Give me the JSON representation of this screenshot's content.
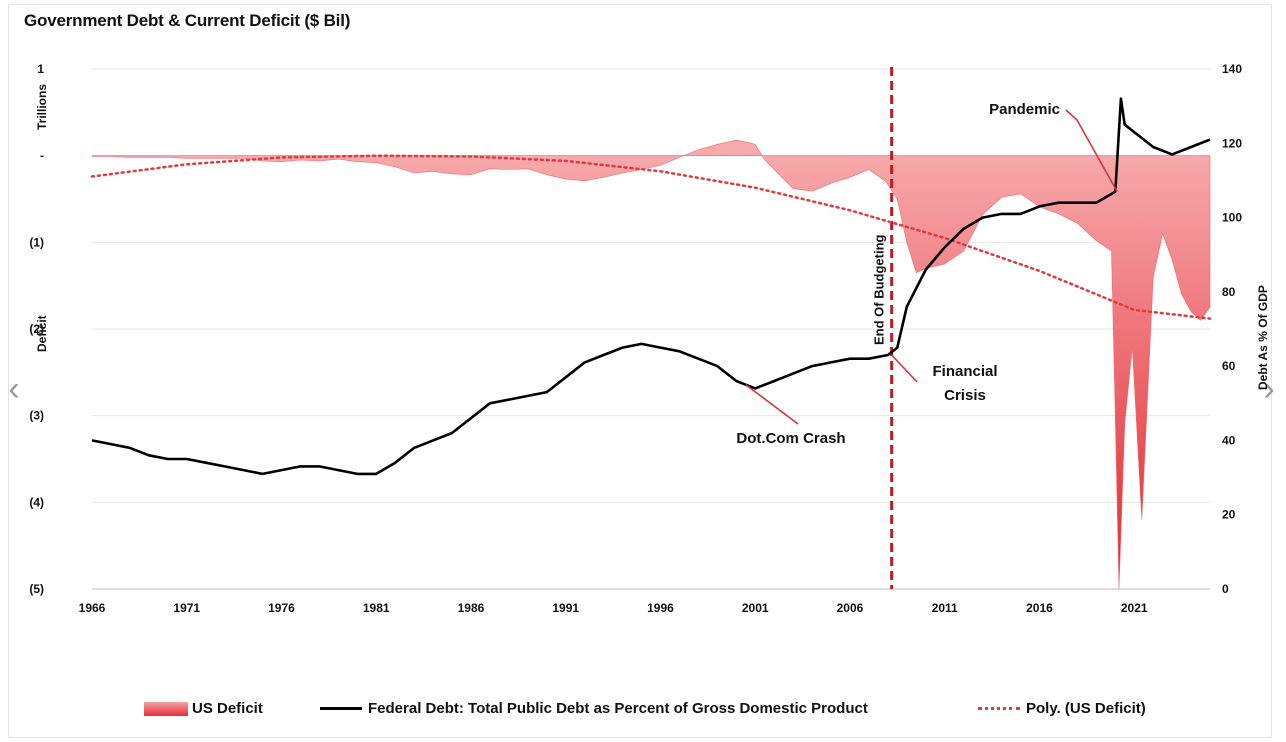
{
  "chart_data": {
    "type": "area",
    "title": "Government Debt & Current Deficit ($ Bil)",
    "left_axis": {
      "label_top": "Trillions",
      "label": "Deficit",
      "range": [
        -5,
        1
      ],
      "ticks": [
        {
          "value": 1,
          "label": "1"
        },
        {
          "value": 0,
          "label": "-"
        },
        {
          "value": -1,
          "label": "(1)"
        },
        {
          "value": -2,
          "label": "(2)"
        },
        {
          "value": -3,
          "label": "(3)"
        },
        {
          "value": -4,
          "label": "(4)"
        },
        {
          "value": -5,
          "label": "(5)"
        }
      ]
    },
    "right_axis": {
      "label": "Debt As % Of GDP",
      "range": [
        0,
        140
      ],
      "ticks": [
        "0",
        "20",
        "40",
        "60",
        "80",
        "100",
        "120",
        "140"
      ]
    },
    "x_axis": {
      "range": [
        1966,
        2025
      ],
      "ticks": [
        "1966",
        "1971",
        "1976",
        "1981",
        "1986",
        "1991",
        "1996",
        "2001",
        "2006",
        "2011",
        "2016",
        "2021"
      ]
    },
    "grid": "horizontal",
    "legend_position": "bottom",
    "legend": [
      "US Deficit",
      "Federal Debt: Total Public Debt as Percent of Gross Domestic Product",
      "Poly. (US Deficit)"
    ],
    "series": [
      {
        "name": "US Deficit",
        "axis": "left",
        "type": "area",
        "color": "#e42f36",
        "x": [
          1966,
          1967,
          1968,
          1969,
          1970,
          1971,
          1972,
          1973,
          1974,
          1975,
          1976,
          1977,
          1978,
          1979,
          1980,
          1981,
          1982,
          1983,
          1984,
          1985,
          1986,
          1987,
          1988,
          1989,
          1990,
          1991,
          1992,
          1993,
          1994,
          1995,
          1996,
          1997,
          1998,
          1999,
          2000,
          2000.7,
          2001,
          2001.5,
          2002,
          2003,
          2004,
          2005,
          2006,
          2007,
          2007.9,
          2008.5,
          2009,
          2009.5,
          2010,
          2011,
          2012,
          2013,
          2014,
          2015,
          2016,
          2017,
          2018,
          2019,
          2019.8,
          2020,
          2020.2,
          2020.5,
          2020.9,
          2021,
          2021.4,
          2021.7,
          2022,
          2022.5,
          2023,
          2023.5,
          2024,
          2024.5,
          2025
        ],
        "values": [
          -0.01,
          -0.01,
          -0.02,
          -0.02,
          -0.02,
          -0.03,
          -0.03,
          -0.03,
          -0.03,
          -0.06,
          -0.07,
          -0.05,
          -0.06,
          -0.04,
          -0.07,
          -0.08,
          -0.13,
          -0.2,
          -0.18,
          -0.21,
          -0.22,
          -0.15,
          -0.16,
          -0.15,
          -0.22,
          -0.27,
          -0.29,
          -0.25,
          -0.2,
          -0.16,
          -0.11,
          -0.02,
          0.07,
          0.13,
          0.18,
          0.15,
          0.13,
          -0.05,
          -0.16,
          -0.38,
          -0.41,
          -0.32,
          -0.25,
          -0.16,
          -0.3,
          -0.5,
          -1.0,
          -1.35,
          -1.3,
          -1.25,
          -1.1,
          -0.68,
          -0.48,
          -0.44,
          -0.59,
          -0.67,
          -0.78,
          -0.98,
          -1.1,
          -3.0,
          -5.0,
          -3.1,
          -2.2,
          -2.6,
          -4.2,
          -2.8,
          -1.4,
          -0.9,
          -1.2,
          -1.6,
          -1.8,
          -1.9,
          -1.75
        ]
      },
      {
        "name": "Federal Debt: Total Public Debt as Percent of Gross Domestic Product",
        "axis": "right",
        "type": "line",
        "color": "#000000",
        "x": [
          1966,
          1967,
          1968,
          1969,
          1970,
          1971,
          1972,
          1973,
          1974,
          1975,
          1976,
          1977,
          1978,
          1979,
          1980,
          1981,
          1982,
          1983,
          1984,
          1985,
          1986,
          1987,
          1988,
          1989,
          1990,
          1991,
          1992,
          1993,
          1994,
          1995,
          1996,
          1997,
          1998,
          1999,
          2000,
          2001,
          2002,
          2003,
          2004,
          2005,
          2006,
          2007,
          2008,
          2008.5,
          2009,
          2010,
          2011,
          2012,
          2013,
          2014,
          2015,
          2016,
          2017,
          2018,
          2019,
          2020,
          2020.3,
          2020.5,
          2021,
          2022,
          2023,
          2024,
          2025
        ],
        "values": [
          40,
          39,
          38,
          36,
          35,
          35,
          34,
          33,
          32,
          31,
          32,
          33,
          33,
          32,
          31,
          31,
          34,
          38,
          40,
          42,
          46,
          50,
          51,
          52,
          53,
          57,
          61,
          63,
          65,
          66,
          65,
          64,
          62,
          60,
          56,
          54,
          56,
          58,
          60,
          61,
          62,
          62,
          63,
          65,
          76,
          86,
          92,
          97,
          100,
          101,
          101,
          103,
          104,
          104,
          104,
          107,
          132,
          125,
          123,
          119,
          117,
          119,
          121
        ]
      },
      {
        "name": "Poly. (US Deficit)",
        "axis": "left",
        "type": "line",
        "style": "dotted",
        "color": "#e03a3e",
        "x": [
          1966,
          1971,
          1976,
          1981,
          1986,
          1991,
          1996,
          2001,
          2006,
          2011,
          2016,
          2021,
          2025
        ],
        "values": [
          -0.24,
          -0.1,
          -0.02,
          0.0,
          -0.01,
          -0.06,
          -0.18,
          -0.37,
          -0.63,
          -0.95,
          -1.33,
          -1.78,
          -1.88
        ]
      }
    ],
    "vertical_line": {
      "x": 2008.2,
      "label": "End Of Budgeting",
      "color": "#c41a1f"
    },
    "annotations": [
      {
        "label": "Pandemic",
        "x": 2020.1,
        "axis": "right",
        "y": 107
      },
      {
        "label": "Financial",
        "label2": "Crisis",
        "x": 2008.2,
        "axis": "right",
        "y": 63
      },
      {
        "label": "Dot.Com Crash",
        "x": 2000.5,
        "axis": "right",
        "y": 55
      }
    ]
  },
  "nav": {
    "prev_icon": "chevron-left-icon",
    "next_icon": "chevron-right-icon",
    "prev": "‹",
    "next": "›"
  }
}
